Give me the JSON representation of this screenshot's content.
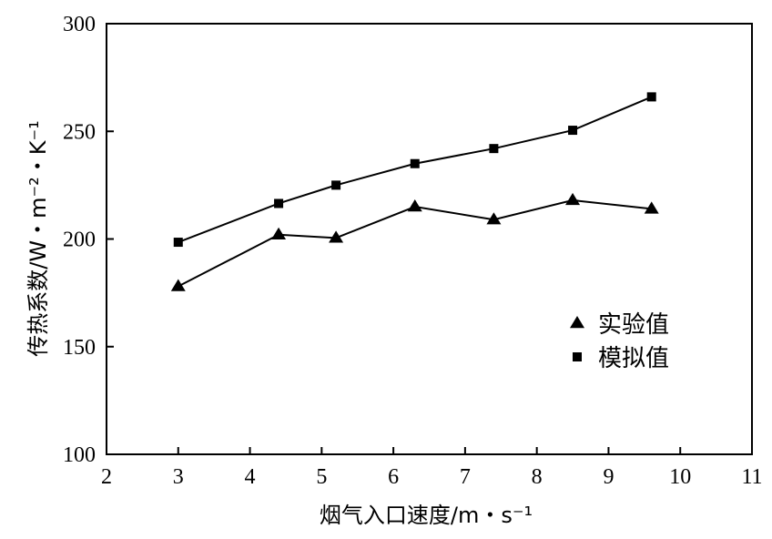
{
  "chart_data": {
    "type": "line",
    "title": "",
    "xlabel": "烟气入口速度/m・s⁻¹",
    "ylabel": "传热系数/W・m⁻²・K⁻¹",
    "xlim": [
      2,
      11
    ],
    "ylim": [
      100,
      300
    ],
    "xticks": [
      2,
      3,
      4,
      5,
      6,
      7,
      8,
      9,
      10,
      11
    ],
    "yticks": [
      100,
      150,
      200,
      250,
      300
    ],
    "grid": false,
    "legend_position": "right",
    "series": [
      {
        "name": "实验值",
        "marker": "triangle",
        "color": "#000000",
        "points": [
          [
            3.0,
            178
          ],
          [
            4.4,
            202
          ],
          [
            5.2,
            200.5
          ],
          [
            6.3,
            215
          ],
          [
            7.4,
            209
          ],
          [
            8.5,
            218
          ],
          [
            9.6,
            214
          ]
        ]
      },
      {
        "name": "模拟值",
        "marker": "square",
        "color": "#000000",
        "points": [
          [
            3.0,
            198.5
          ],
          [
            4.4,
            216.5
          ],
          [
            5.2,
            225
          ],
          [
            6.3,
            235
          ],
          [
            7.4,
            242
          ],
          [
            8.5,
            250.5
          ],
          [
            9.6,
            266
          ]
        ]
      }
    ]
  }
}
